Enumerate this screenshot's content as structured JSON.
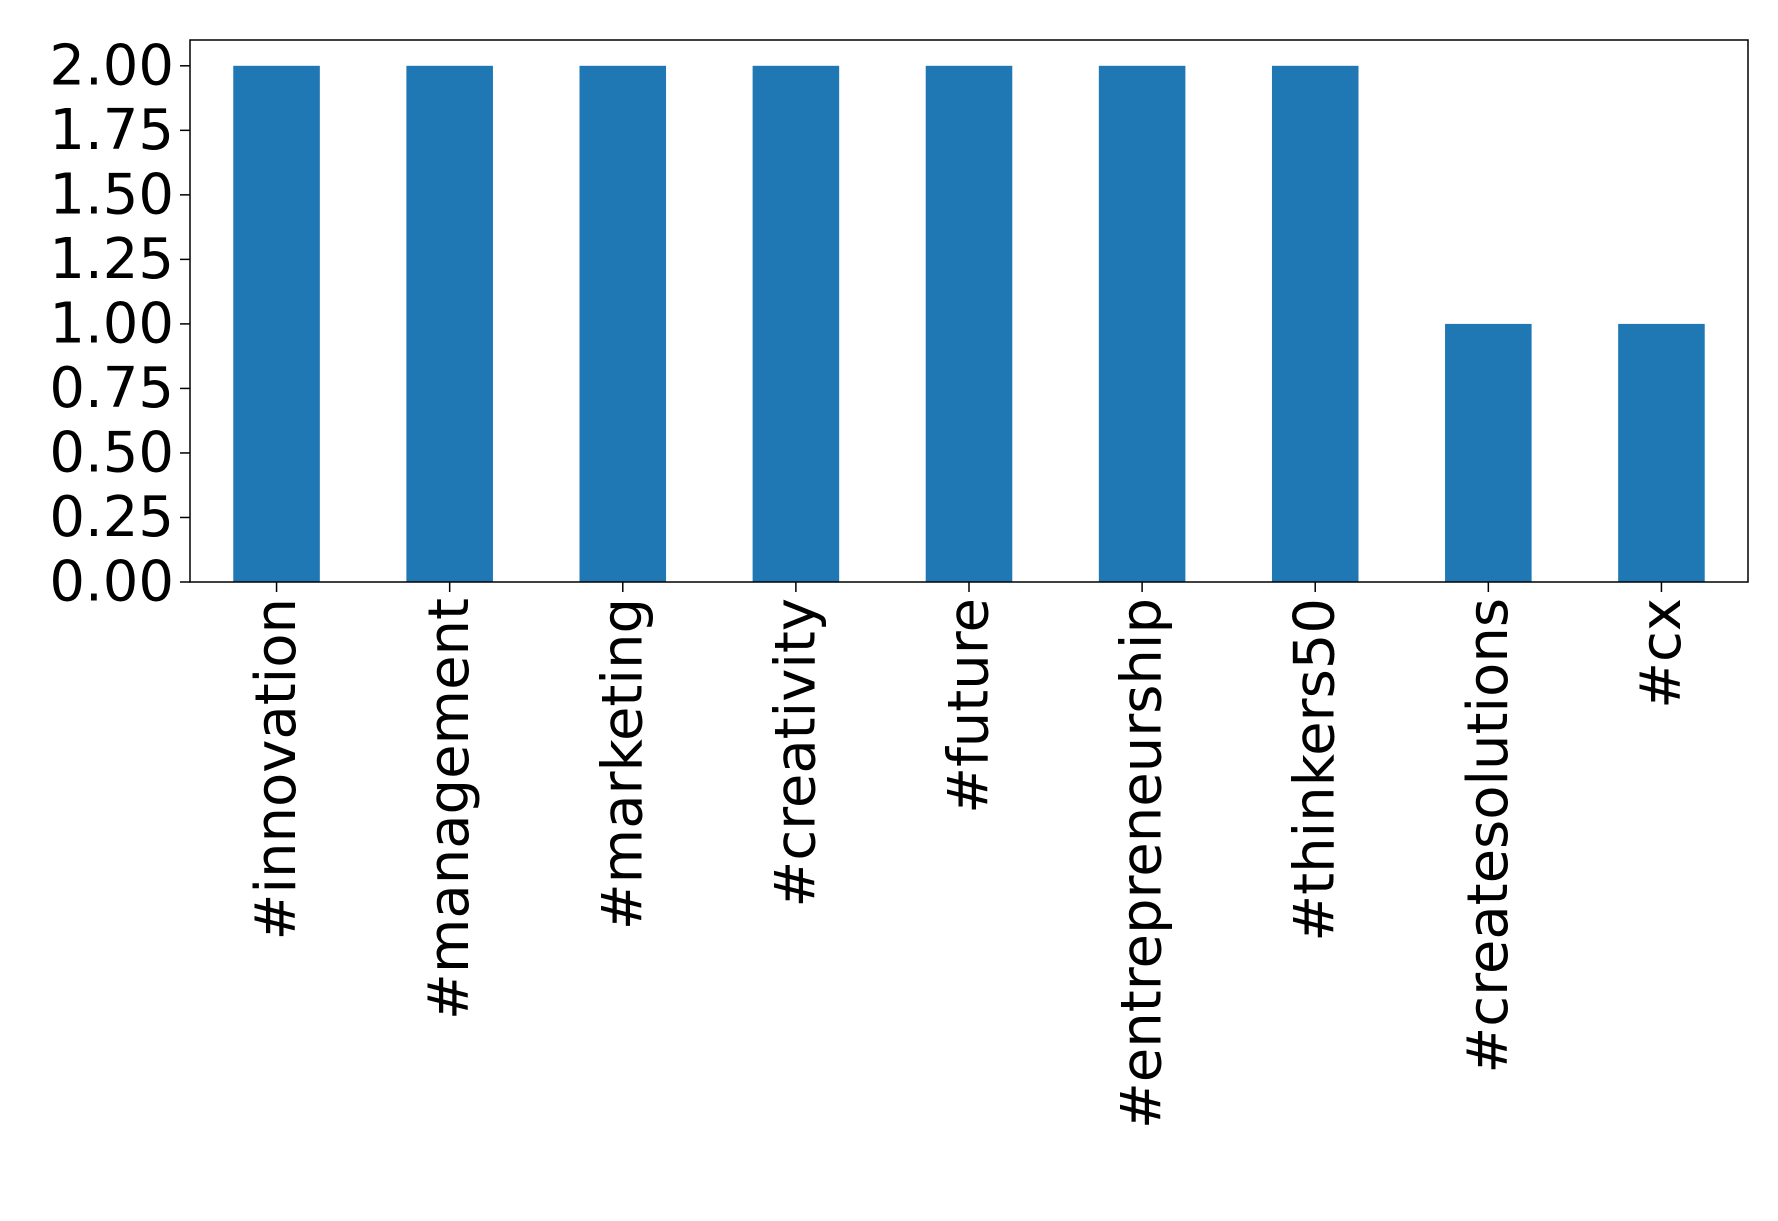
{
  "chart_data": {
    "type": "bar",
    "categories": [
      "#innovation",
      "#management",
      "#marketing",
      "#creativity",
      "#future",
      "#entrepreneurship",
      "#thinkers50",
      "#createsolutions",
      "#cx"
    ],
    "values": [
      2,
      2,
      2,
      2,
      2,
      2,
      2,
      1,
      1
    ],
    "title": "",
    "xlabel": "",
    "ylabel": "",
    "ylim": [
      0,
      2.1
    ],
    "yticks": [
      "0.00",
      "0.25",
      "0.50",
      "0.75",
      "1.00",
      "1.25",
      "1.50",
      "1.75",
      "2.00"
    ],
    "grid": false,
    "bar_color": "#1f77b4"
  }
}
